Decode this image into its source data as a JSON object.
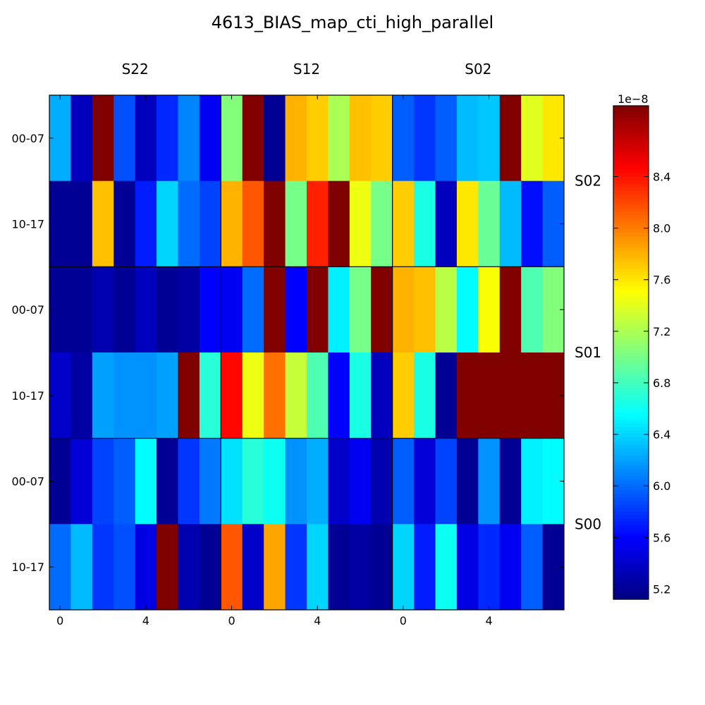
{
  "chart_data": {
    "type": "heatmap",
    "title": "4613_BIAS_map_cti_high_parallel",
    "colormap": "jet",
    "vmin": 5.12,
    "vmax": 8.95,
    "colorbar": {
      "exponent_label": "1e−8",
      "ticks": [
        "5.2",
        "5.6",
        "6.0",
        "6.4",
        "6.8",
        "7.2",
        "7.6",
        "8.0",
        "8.4"
      ]
    },
    "column_groups": [
      "S22",
      "S12",
      "S02"
    ],
    "row_groups": [
      "S02",
      "S01",
      "S00"
    ],
    "row_tick_labels": [
      "00-07",
      "10-17",
      "00-07",
      "10-17",
      "00-07",
      "10-17"
    ],
    "x_tick_labels": [
      "0",
      "4",
      "0",
      "4",
      "0",
      "4"
    ],
    "x_tick_cells": [
      0,
      4,
      8,
      12,
      16,
      20
    ],
    "values": [
      [
        6.25,
        5.35,
        8.95,
        5.9,
        5.35,
        5.75,
        6.1,
        5.55,
        7.05,
        8.95,
        5.2,
        7.8,
        7.7,
        7.2,
        7.75,
        7.7,
        5.95,
        5.8,
        5.95,
        6.3,
        6.35,
        8.95,
        7.4,
        7.6
      ],
      [
        5.2,
        5.2,
        7.75,
        5.2,
        5.7,
        6.4,
        6.0,
        5.85,
        7.8,
        8.15,
        8.95,
        7.0,
        8.35,
        8.95,
        7.45,
        7.0,
        7.7,
        6.65,
        5.35,
        7.6,
        6.95,
        6.3,
        5.65,
        5.95
      ],
      [
        5.2,
        5.2,
        5.3,
        5.2,
        5.35,
        5.2,
        5.25,
        5.6,
        5.55,
        6.0,
        8.95,
        5.6,
        8.95,
        6.5,
        7.0,
        8.95,
        7.8,
        7.75,
        7.25,
        6.55,
        7.5,
        8.95,
        6.85,
        7.05
      ],
      [
        5.4,
        5.25,
        6.2,
        6.15,
        6.15,
        6.2,
        8.95,
        6.7,
        8.45,
        7.45,
        8.05,
        7.3,
        6.85,
        5.6,
        6.65,
        5.35,
        7.7,
        6.65,
        5.2,
        8.95,
        8.95,
        8.95,
        8.95,
        8.95
      ],
      [
        5.2,
        5.45,
        5.85,
        5.95,
        6.55,
        5.2,
        5.8,
        6.05,
        6.45,
        6.7,
        6.6,
        6.15,
        6.25,
        5.4,
        5.55,
        5.3,
        5.95,
        5.45,
        5.85,
        5.2,
        6.15,
        5.2,
        6.5,
        6.55
      ],
      [
        6.0,
        6.3,
        5.8,
        5.9,
        5.5,
        8.95,
        5.3,
        5.2,
        8.15,
        5.4,
        7.85,
        5.8,
        6.4,
        5.2,
        5.25,
        5.2,
        6.4,
        5.7,
        6.6,
        5.5,
        5.75,
        5.55,
        5.95,
        5.2
      ]
    ]
  }
}
